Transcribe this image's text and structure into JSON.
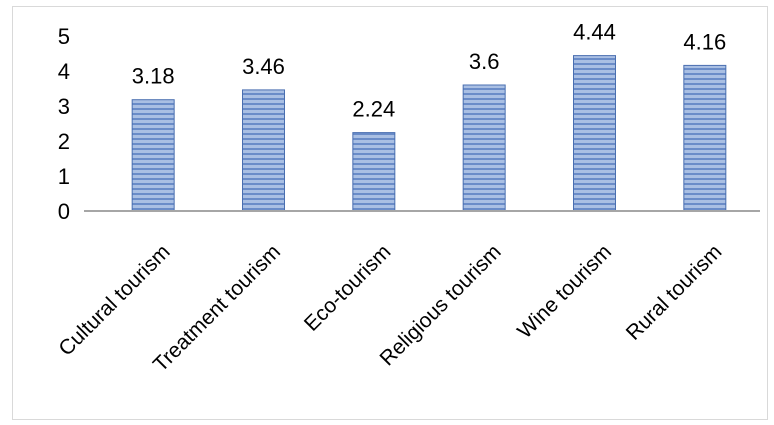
{
  "chart_data": {
    "type": "bar",
    "categories": [
      "Cultural tourism",
      "Treatment tourism",
      "Eco-tourism",
      "Religious tourism",
      "Wine tourism",
      "Rural tourism"
    ],
    "values": [
      3.18,
      3.46,
      2.24,
      3.6,
      4.44,
      4.16
    ],
    "value_labels": [
      "3.18",
      "3.46",
      "2.24",
      "3.6",
      "4.44",
      "4.16"
    ],
    "title": "",
    "xlabel": "",
    "ylabel": "",
    "ylim": [
      0,
      5
    ],
    "yticks": [
      "0",
      "1",
      "2",
      "3",
      "4",
      "5"
    ],
    "grid": false,
    "legend": "none",
    "bar_fill": "#9fb6de",
    "bar_stripe": "#5b80c0",
    "bar_border": "#4a6fb0",
    "axis_color": "#a6a6a6"
  }
}
